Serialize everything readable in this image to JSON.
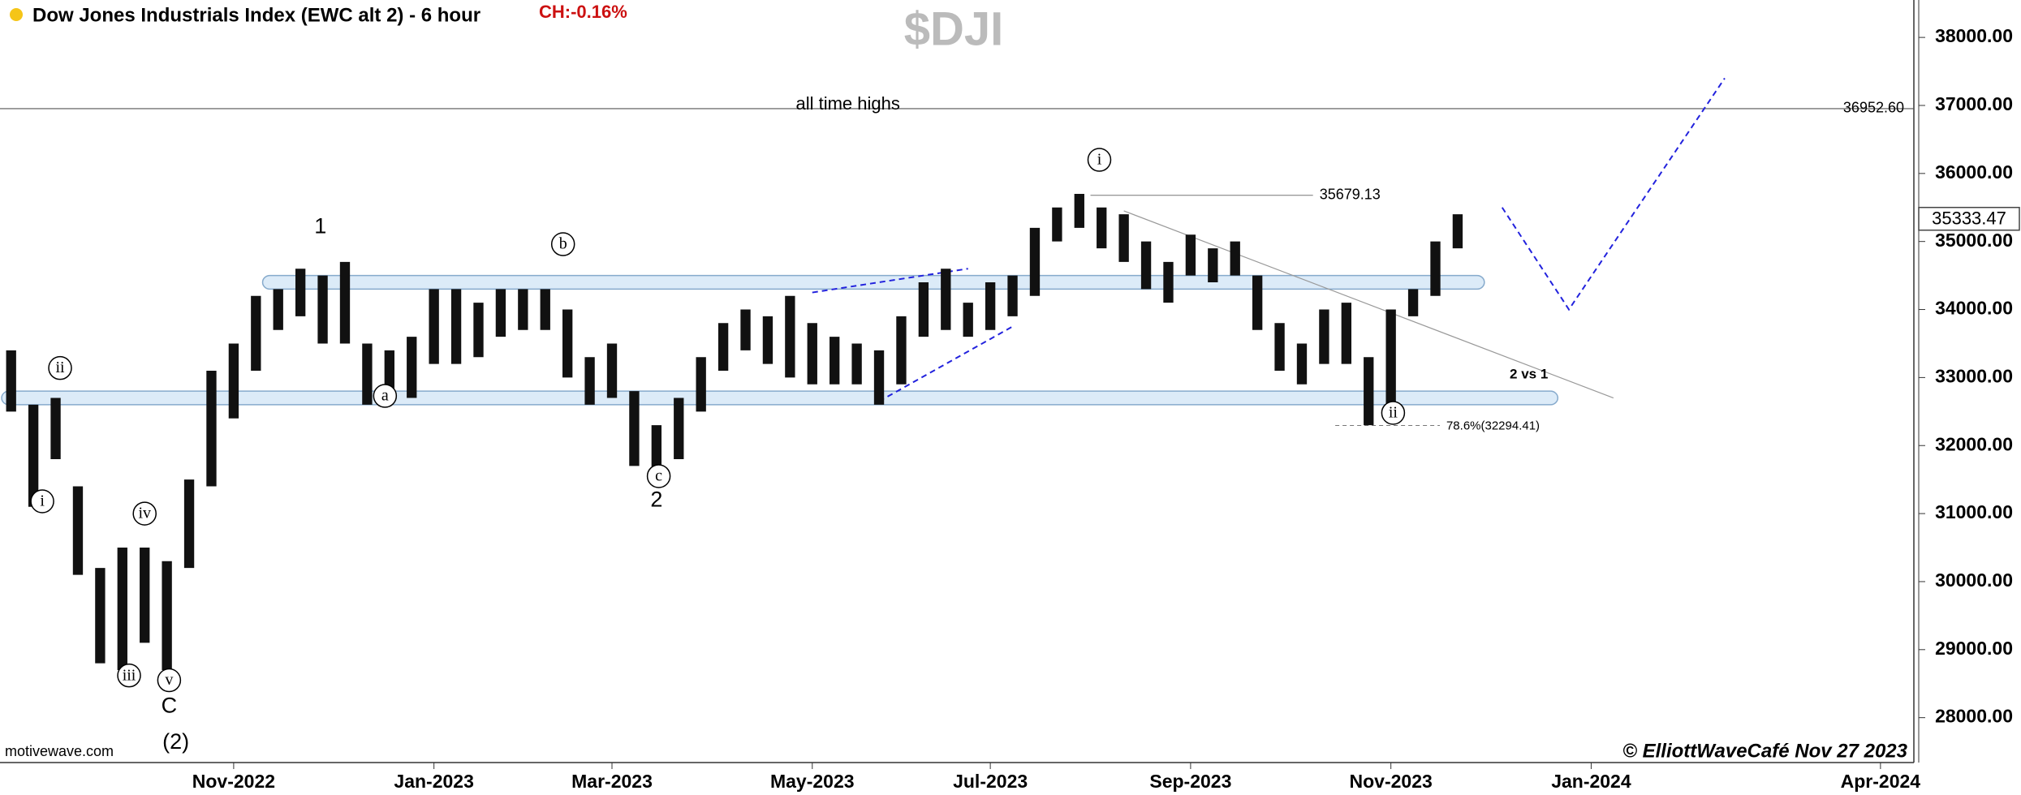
{
  "chart_data": {
    "type": "ohlc",
    "title": "Dow Jones Industrials Index (EWC alt 2) - 6 hour",
    "change": "CH:-0.16%",
    "symbol": "$DJI",
    "source": "motivewave.com",
    "copyright": "© ElliottWaveCafé Nov 27 2023",
    "color": "#111111",
    "categories": [
      null,
      null,
      null,
      null,
      null,
      null,
      null,
      null,
      null,
      null,
      "Nov-2022",
      null,
      null,
      null,
      null,
      null,
      null,
      null,
      null,
      "Jan-2023",
      null,
      null,
      null,
      null,
      null,
      null,
      null,
      "Mar-2023",
      null,
      null,
      null,
      null,
      null,
      null,
      null,
      null,
      "May-2023",
      null,
      null,
      null,
      null,
      null,
      null,
      null,
      "Jul-2023",
      null,
      null,
      null,
      null,
      null,
      null,
      null,
      null,
      "Sep-2023",
      null,
      null,
      null,
      null,
      null,
      null,
      null,
      null,
      "Nov-2023",
      null,
      null,
      null,
      null,
      null,
      null,
      null,
      null,
      "Jan-2024",
      null,
      null,
      null,
      null,
      null,
      null,
      null,
      null,
      null,
      null,
      null,
      null,
      "Apr-2024",
      null
    ],
    "high": [
      33400,
      32600,
      32700,
      31400,
      30200,
      30500,
      30500,
      30300,
      31500,
      33100,
      33500,
      34200,
      34300,
      34600,
      34500,
      34700,
      33500,
      33400,
      33600,
      34300,
      34300,
      34100,
      34300,
      34300,
      34300,
      34000,
      33300,
      33500,
      32800,
      32300,
      32700,
      33300,
      33800,
      34000,
      33900,
      34200,
      33800,
      33600,
      33500,
      33400,
      33900,
      34400,
      34600,
      34100,
      34400,
      34500,
      35200,
      35500,
      35700,
      35500,
      35400,
      35000,
      34700,
      35100,
      34900,
      35000,
      34500,
      33800,
      33500,
      34000,
      34100,
      33300,
      34000,
      34300,
      35000,
      35400,
      null,
      null,
      null,
      null,
      null,
      null,
      null,
      null,
      null,
      null,
      null,
      null,
      null,
      null,
      null,
      null,
      null,
      null,
      null,
      null
    ],
    "low": [
      32500,
      31100,
      31800,
      30100,
      28800,
      28700,
      29100,
      28700,
      30200,
      31400,
      32400,
      33100,
      33700,
      33900,
      33500,
      33500,
      32600,
      32700,
      32700,
      33200,
      33200,
      33300,
      33600,
      33700,
      33700,
      33000,
      32600,
      32700,
      31700,
      31500,
      31800,
      32500,
      33100,
      33400,
      33200,
      33000,
      32900,
      32900,
      32900,
      32600,
      32900,
      33600,
      33700,
      33600,
      33700,
      33900,
      34200,
      35000,
      35200,
      34900,
      34700,
      34300,
      34100,
      34500,
      34400,
      34500,
      33700,
      33100,
      32900,
      33200,
      33200,
      32300,
      32600,
      33900,
      34200,
      34900,
      null,
      null,
      null,
      null,
      null,
      null,
      null,
      null,
      null,
      null,
      null,
      null,
      null,
      null,
      null,
      null,
      null,
      null,
      null,
      null
    ],
    "last": 35333.47,
    "ylim": [
      27340,
      38550
    ],
    "yticks": [
      {
        "value": 28000,
        "label": "28000.00"
      },
      {
        "value": 29000,
        "label": "29000.00"
      },
      {
        "value": 30000,
        "label": "30000.00"
      },
      {
        "value": 31000,
        "label": "31000.00"
      },
      {
        "value": 32000,
        "label": "32000.00"
      },
      {
        "value": 33000,
        "label": "33000.00"
      },
      {
        "value": 34000,
        "label": "34000.00"
      },
      {
        "value": 35000,
        "label": "35000.00"
      },
      {
        "value": 36000,
        "label": "36000.00"
      },
      {
        "value": 37000,
        "label": "37000.00"
      },
      {
        "value": 38000,
        "label": "38000.00"
      }
    ],
    "levels": [
      {
        "value": 36952.6,
        "label": "36952.60"
      },
      {
        "value": 35679.13,
        "label": "35679.13"
      },
      {
        "value": 32294.41,
        "label": "78.6%(32294.41)"
      }
    ],
    "zones": [
      [
        34300,
        34500
      ],
      [
        32600,
        32800
      ]
    ],
    "lines": [
      {
        "color": "#2222dd",
        "dashed": true,
        "x": [
          36,
          43
        ],
        "values": [
          34250,
          34600
        ]
      },
      {
        "color": "#2222dd",
        "dashed": true,
        "x": [
          39,
          45
        ],
        "values": [
          32650,
          33750
        ]
      },
      {
        "color": "#999999",
        "dashed": false,
        "x": [
          50,
          72
        ],
        "values": [
          35450,
          32700
        ]
      },
      {
        "color": "#2222dd",
        "dashed": true,
        "x": [
          67,
          70,
          77
        ],
        "values": [
          35500,
          34000,
          37400
        ]
      }
    ],
    "annotations": [
      "ii",
      "i",
      "iii",
      "iv",
      "v",
      "C",
      "(2)",
      "1",
      "a",
      "b",
      "c",
      "2",
      "i",
      "ii",
      "all time highs",
      "2 vs 1"
    ]
  }
}
